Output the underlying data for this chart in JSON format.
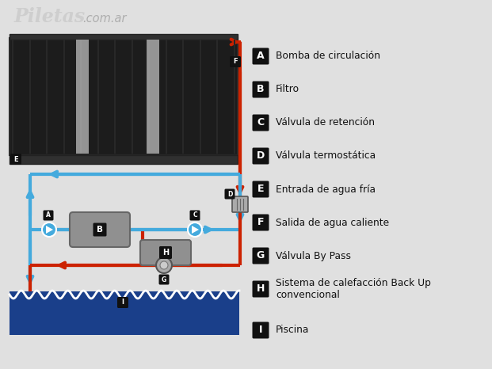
{
  "bg_color": "#e0e0e0",
  "red": "#cc2200",
  "blue": "#44aadd",
  "dark": "#111111",
  "panel_dark": "#1c1c1c",
  "panel_stripe": "#d0d0d0",
  "gray_comp": "#909090",
  "pool_blue": "#1a3f8a",
  "lw_pipe": 3.0,
  "legend_items": [
    {
      "label": "A",
      "text": "Bomba de circulación"
    },
    {
      "label": "B",
      "text": "Filtro"
    },
    {
      "label": "C",
      "text": "Válvula de retención"
    },
    {
      "label": "D",
      "text": "Válvula termostática"
    },
    {
      "label": "E",
      "text": "Entrada de agua fría"
    },
    {
      "label": "F",
      "text": "Salida de agua caliente"
    },
    {
      "label": "G",
      "text": "Válvula By Pass"
    },
    {
      "label": "H",
      "text": "Sistema de calefacción Back Up\nconvencional"
    },
    {
      "label": "I",
      "text": "Piscina"
    }
  ],
  "watermark": "Piletas",
  "watermark2": ".com.ar"
}
